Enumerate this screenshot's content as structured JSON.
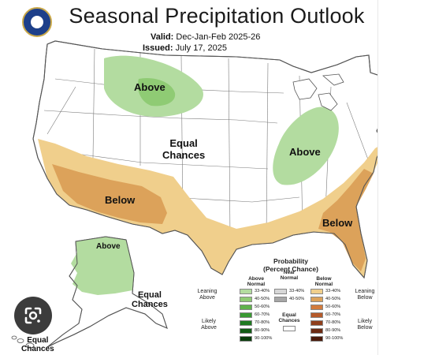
{
  "header": {
    "title": "Seasonal Precipitation Outlook",
    "valid_label": "Valid:",
    "valid_value": "Dec-Jan-Feb 2025-26",
    "issued_label": "Issued:",
    "issued_value": "July 17, 2025"
  },
  "logos": {
    "left": "doc-seal-icon",
    "right": "noaa-logo-icon"
  },
  "map": {
    "regions": [
      {
        "id": "northern-rockies",
        "category": "above",
        "label": "Above"
      },
      {
        "id": "ohio-valley",
        "category": "above",
        "label": "Above"
      },
      {
        "id": "alaska",
        "category": "above",
        "label": "Above"
      },
      {
        "id": "southwest",
        "category": "below",
        "label": "Below"
      },
      {
        "id": "southeast",
        "category": "below",
        "label": "Below"
      }
    ],
    "equal_chances": {
      "conus_line1": "Equal",
      "conus_line2": "Chances",
      "alaska_line1": "Equal",
      "alaska_line2": "Chances",
      "cut_line1": "Equal",
      "cut_line2": "Chances"
    }
  },
  "legend": {
    "heading_line1": "Probability",
    "heading_line2": "(Percent Chance)",
    "above_head_line1": "Above",
    "above_head_line2": "Normal",
    "near_head_line1": "Near",
    "near_head_line2": "Normal",
    "below_head_line1": "Below",
    "below_head_line2": "Normal",
    "above_bins": [
      "33-40%",
      "40-50%",
      "50-60%",
      "60-70%",
      "70-80%",
      "80-90%",
      "90-100%"
    ],
    "near_bins": [
      "33-40%",
      "40-50%"
    ],
    "below_bins": [
      "33-40%",
      "40-50%",
      "50-60%",
      "60-70%",
      "70-80%",
      "80-90%",
      "90-100%"
    ],
    "equal_chances_line1": "Equal",
    "equal_chances_line2": "Chances",
    "leaning_above_line1": "Leaning",
    "leaning_above_line2": "Above",
    "likely_above_line1": "Likely",
    "likely_above_line2": "Above",
    "leaning_below_line1": "Leaning",
    "leaning_below_line2": "Below",
    "likely_below_line1": "Likely",
    "likely_below_line2": "Below"
  },
  "colors": {
    "above": [
      "#b3dca0",
      "#8fcb74",
      "#5fb24b",
      "#3a9a33",
      "#1f7a21",
      "#115c14",
      "#0a3d0c"
    ],
    "near": [
      "#d7d7d7",
      "#a6a6a6"
    ],
    "below": [
      "#f0cf8c",
      "#dca25a",
      "#d27b3c",
      "#b55a2a",
      "#8f3f1c",
      "#6b2a12",
      "#4a1a0a"
    ],
    "land": "#ffffff",
    "border": "#555555"
  },
  "overlay": {
    "lens_icon": "google-lens-icon"
  }
}
